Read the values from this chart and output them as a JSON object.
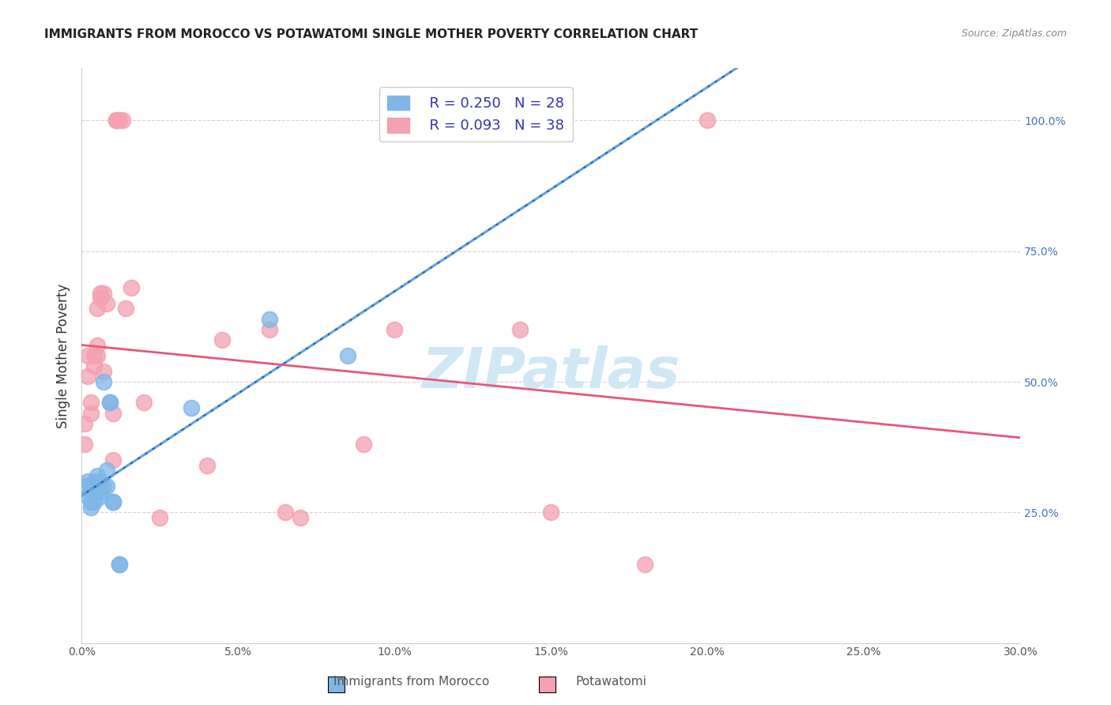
{
  "title": "IMMIGRANTS FROM MOROCCO VS POTAWATOMI SINGLE MOTHER POVERTY CORRELATION CHART",
  "source": "Source: ZipAtlas.com",
  "xlabel_bottom": "",
  "ylabel_left": "Single Mother Poverty",
  "x_label_bottom_left": "0.0%",
  "x_label_bottom_right": "30.0%",
  "right_yticks": [
    0.0,
    0.25,
    0.5,
    0.75,
    1.0
  ],
  "right_yticklabels": [
    "",
    "25.0%",
    "50.0%",
    "75.0%",
    "100.0%"
  ],
  "xlim": [
    0.0,
    0.3
  ],
  "ylim": [
    0.0,
    1.1
  ],
  "morocco_R": 0.25,
  "morocco_N": 28,
  "potawatomi_R": 0.093,
  "potawatomi_N": 38,
  "morocco_color": "#7EB6E8",
  "potawatomi_color": "#F4A0B0",
  "regression_line_morocco_color": "#1E6BB8",
  "regression_line_potawatomi_color": "#E8567A",
  "dashed_line_color": "#7EB6E8",
  "legend_label_morocco": "Immigrants from Morocco",
  "legend_label_potawatomi": "Potawatomi",
  "morocco_x": [
    0.001,
    0.002,
    0.002,
    0.003,
    0.003,
    0.003,
    0.004,
    0.004,
    0.004,
    0.005,
    0.005,
    0.005,
    0.006,
    0.006,
    0.006,
    0.007,
    0.007,
    0.008,
    0.008,
    0.009,
    0.009,
    0.01,
    0.01,
    0.012,
    0.012,
    0.035,
    0.06,
    0.085
  ],
  "morocco_y": [
    0.3,
    0.31,
    0.28,
    0.27,
    0.26,
    0.29,
    0.29,
    0.27,
    0.31,
    0.3,
    0.32,
    0.3,
    0.29,
    0.28,
    0.31,
    0.5,
    0.3,
    0.33,
    0.3,
    0.46,
    0.46,
    0.27,
    0.27,
    0.15,
    0.15,
    0.45,
    0.62,
    0.55
  ],
  "potawatomi_x": [
    0.001,
    0.001,
    0.002,
    0.002,
    0.003,
    0.003,
    0.003,
    0.004,
    0.004,
    0.005,
    0.005,
    0.005,
    0.006,
    0.006,
    0.007,
    0.007,
    0.008,
    0.01,
    0.01,
    0.011,
    0.011,
    0.012,
    0.013,
    0.014,
    0.016,
    0.02,
    0.025,
    0.04,
    0.045,
    0.06,
    0.065,
    0.07,
    0.09,
    0.1,
    0.14,
    0.15,
    0.18,
    0.2
  ],
  "potawatomi_y": [
    0.38,
    0.42,
    0.51,
    0.55,
    0.44,
    0.46,
    0.3,
    0.53,
    0.55,
    0.55,
    0.57,
    0.64,
    0.67,
    0.66,
    0.67,
    0.52,
    0.65,
    0.44,
    0.35,
    1.0,
    1.0,
    1.0,
    1.0,
    0.64,
    0.68,
    0.46,
    0.24,
    0.34,
    0.58,
    0.6,
    0.25,
    0.24,
    0.38,
    0.6,
    0.6,
    0.25,
    0.15,
    1.0
  ],
  "watermark_text": "ZIPatlas",
  "watermark_color": "#D0E8F5",
  "watermark_fontsize": 52
}
